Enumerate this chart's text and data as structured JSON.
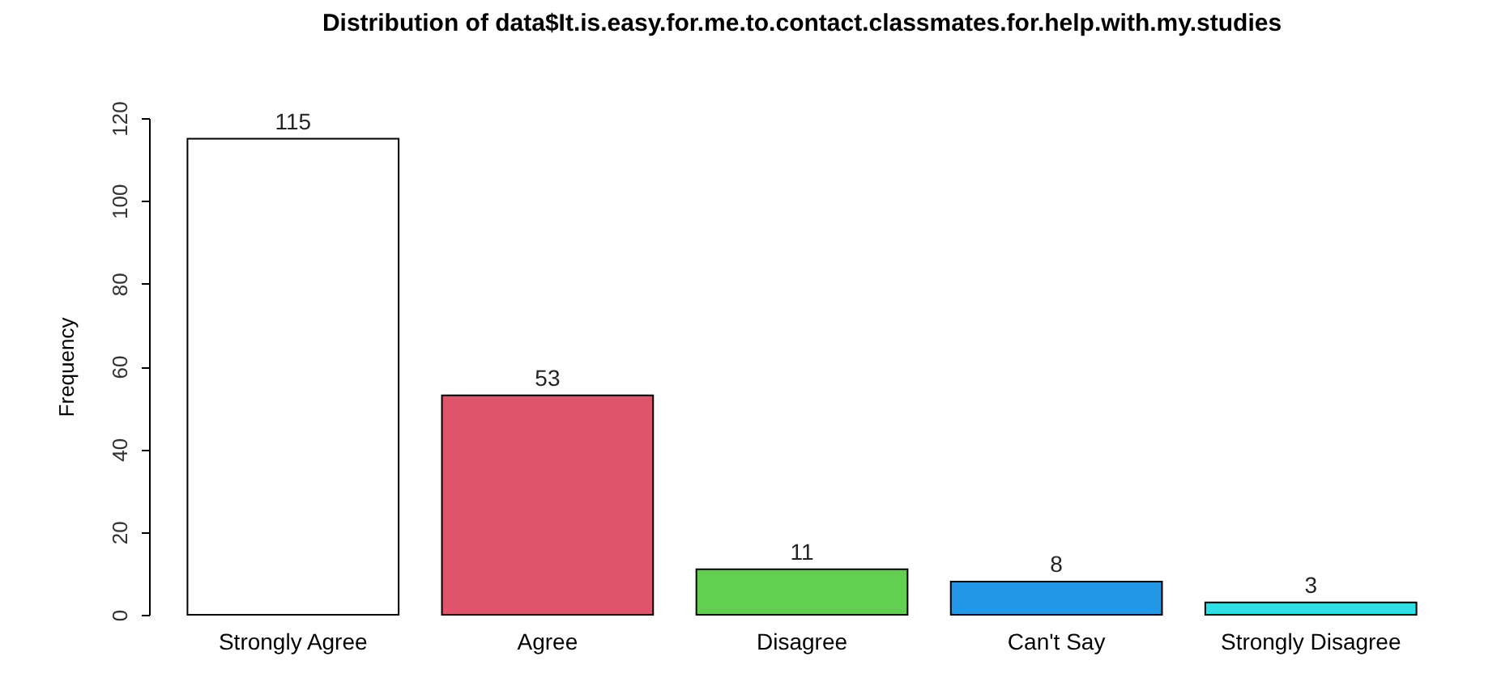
{
  "chart_data": {
    "type": "bar",
    "title": "Distribution of data$It.is.easy.for.me.to.contact.classmates.for.help.with.my.studies",
    "ylabel": "Frequency",
    "categories": [
      "Strongly Agree",
      "Agree",
      "Disagree",
      "Can't Say",
      "Strongly Disagree"
    ],
    "values": [
      115,
      53,
      11,
      8,
      3
    ],
    "colors": [
      "#ffffff",
      "#df536b",
      "#61d04f",
      "#2297e6",
      "#28e2e5"
    ],
    "ylim": [
      0,
      120
    ],
    "yticks": [
      0,
      20,
      40,
      60,
      80,
      100,
      120
    ],
    "data_labels": true,
    "grid": false,
    "legend": false
  }
}
